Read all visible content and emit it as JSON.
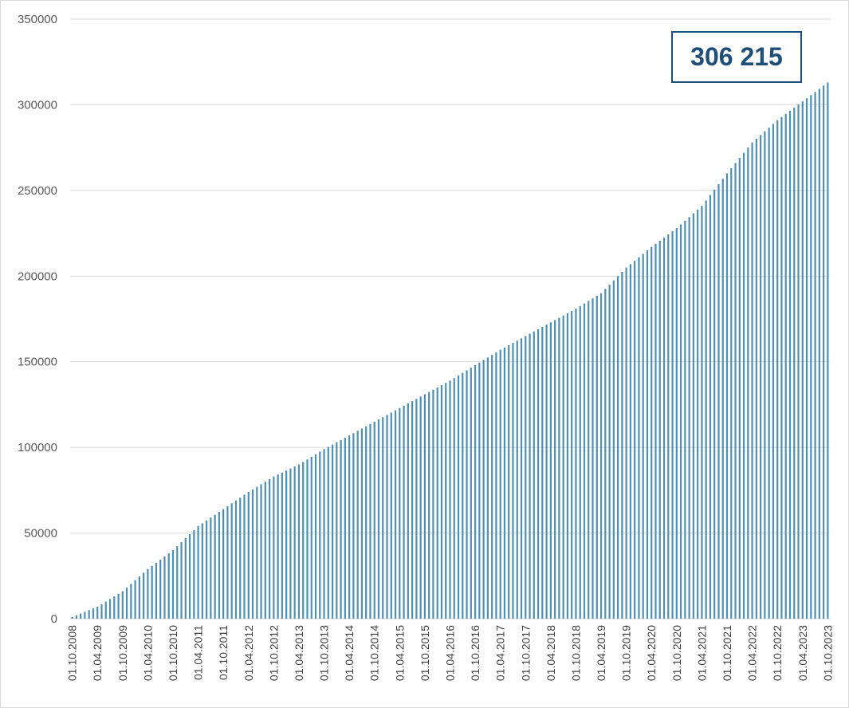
{
  "chart_data": {
    "type": "bar",
    "callout_value": "306 215",
    "colors": {
      "bar": "#4e8fb4",
      "grid": "#d9d9d9",
      "callout_border": "#1f4e79",
      "callout_text": "#1f4e79"
    },
    "ylim": [
      0,
      350000
    ],
    "yticks": [
      "0",
      "50000",
      "100000",
      "150000",
      "200000",
      "250000",
      "300000",
      "350000"
    ],
    "xtick_labels": [
      "01.10.2008",
      "01.04.2009",
      "01.10.2009",
      "01.04.2010",
      "01.10.2010",
      "01.04.2011",
      "01.10.2011",
      "01.04.2012",
      "01.10.2012",
      "01.04.2013",
      "01.10.2013",
      "01.04.2014",
      "01.10.2014",
      "01.04.2015",
      "01.10.2015",
      "01.04.2016",
      "01.10.2016",
      "01.04.2017",
      "01.10.2017",
      "01.04.2018",
      "01.10.2018",
      "01.04.2019",
      "01.10.2019",
      "01.04.2020",
      "01.10.2020",
      "01.04.2021",
      "01.10.2021",
      "01.04.2022",
      "01.10.2022",
      "01.04.2023",
      "01.10.2023"
    ],
    "frequency": "monthly",
    "start": "2008-10",
    "end": "2023-10",
    "anchor_values": [
      {
        "date": "2008-10",
        "value": 1000
      },
      {
        "date": "2009-04",
        "value": 7000
      },
      {
        "date": "2009-10",
        "value": 16000
      },
      {
        "date": "2010-04",
        "value": 29000
      },
      {
        "date": "2010-10",
        "value": 40000
      },
      {
        "date": "2011-04",
        "value": 54000
      },
      {
        "date": "2011-10",
        "value": 64000
      },
      {
        "date": "2012-04",
        "value": 74000
      },
      {
        "date": "2012-10",
        "value": 83000
      },
      {
        "date": "2013-04",
        "value": 90000
      },
      {
        "date": "2013-10",
        "value": 99000
      },
      {
        "date": "2014-04",
        "value": 107000
      },
      {
        "date": "2014-10",
        "value": 115000
      },
      {
        "date": "2015-04",
        "value": 123000
      },
      {
        "date": "2015-10",
        "value": 131000
      },
      {
        "date": "2016-04",
        "value": 139000
      },
      {
        "date": "2016-10",
        "value": 148000
      },
      {
        "date": "2017-04",
        "value": 157000
      },
      {
        "date": "2017-10",
        "value": 165000
      },
      {
        "date": "2018-04",
        "value": 173000
      },
      {
        "date": "2018-10",
        "value": 181000
      },
      {
        "date": "2019-04",
        "value": 190000
      },
      {
        "date": "2019-10",
        "value": 205000
      },
      {
        "date": "2020-04",
        "value": 217000
      },
      {
        "date": "2020-10",
        "value": 228000
      },
      {
        "date": "2021-04",
        "value": 241000
      },
      {
        "date": "2021-10",
        "value": 260000
      },
      {
        "date": "2022-04",
        "value": 278000
      },
      {
        "date": "2022-10",
        "value": 291000
      },
      {
        "date": "2023-04",
        "value": 302000
      },
      {
        "date": "2023-10",
        "value": 313000
      }
    ]
  }
}
